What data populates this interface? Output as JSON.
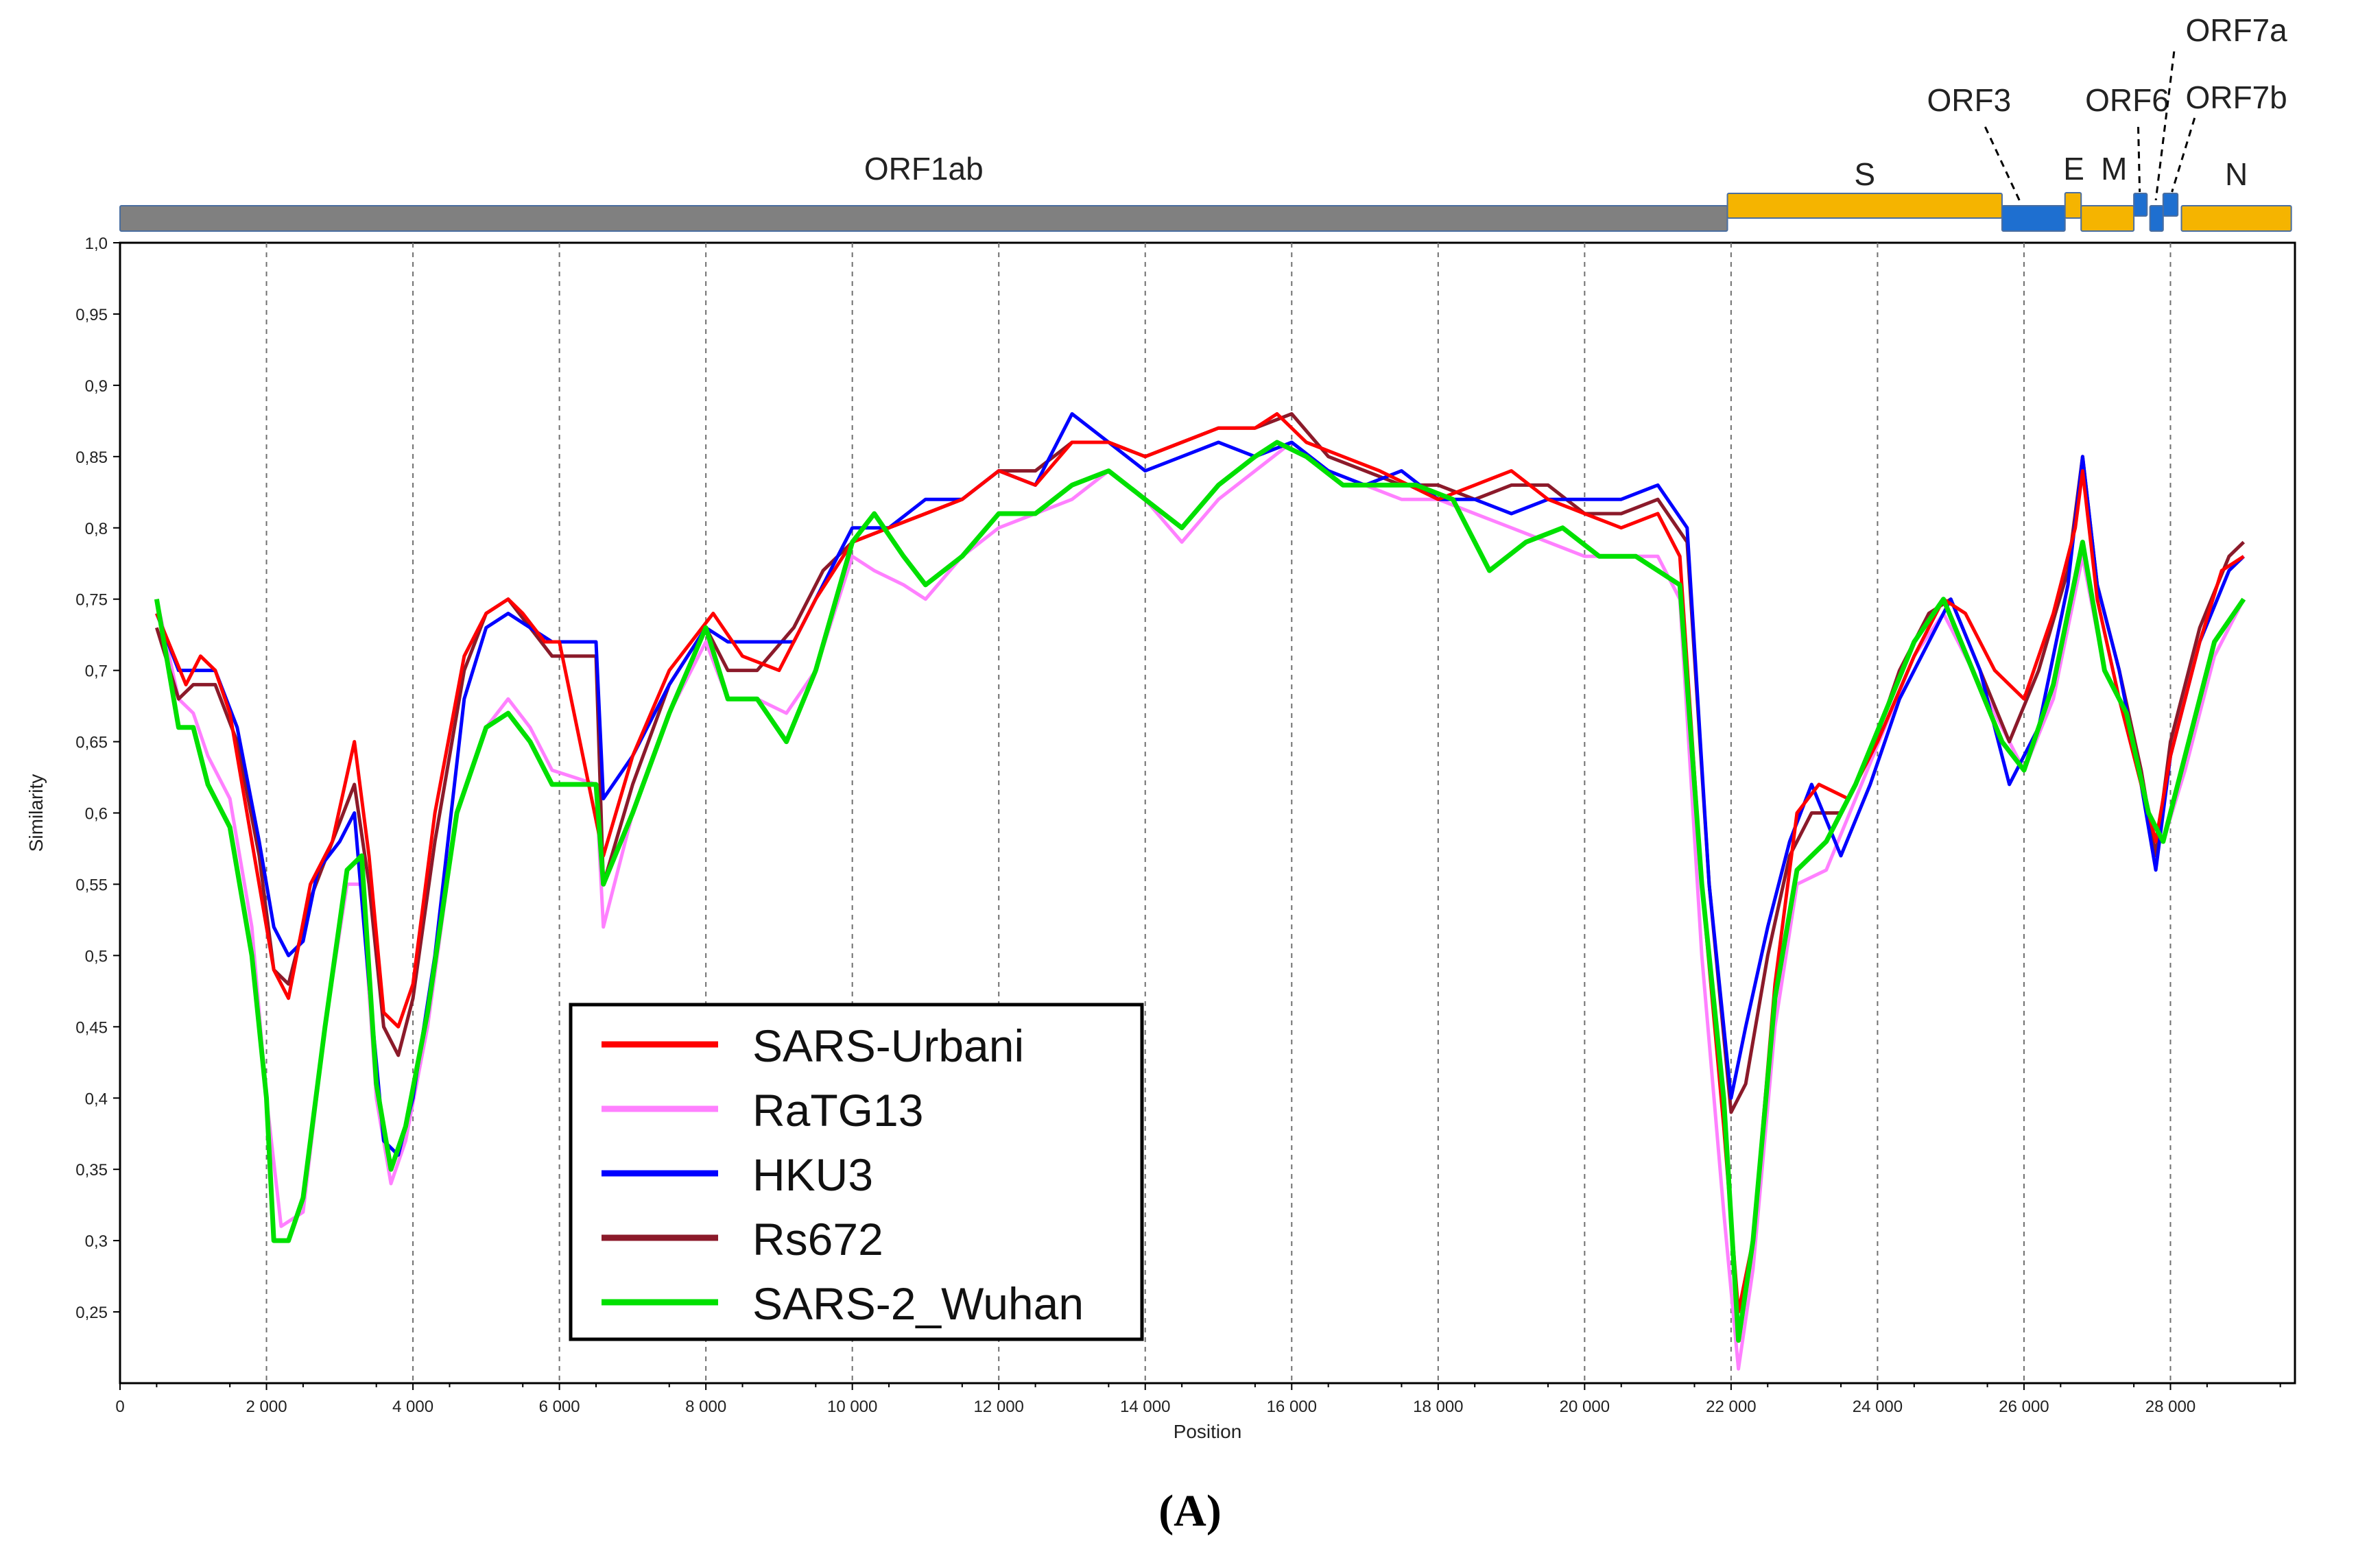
{
  "panel_label": "(A)",
  "chart_data": {
    "type": "line",
    "xlabel": "Position",
    "ylabel": "Similarity",
    "xlim": [
      0,
      29700
    ],
    "ylim": [
      0.2,
      1.0
    ],
    "x_ticks": [
      0,
      2000,
      4000,
      6000,
      8000,
      10000,
      12000,
      14000,
      16000,
      18000,
      20000,
      22000,
      24000,
      26000,
      28000
    ],
    "x_tick_labels": [
      "0",
      "2 000",
      "4 000",
      "6 000",
      "8 000",
      "10 000",
      "12 000",
      "14 000",
      "16 000",
      "18 000",
      "20 000",
      "22 000",
      "24 000",
      "26 000",
      "28 000"
    ],
    "y_ticks": [
      0.25,
      0.3,
      0.35,
      0.4,
      0.45,
      0.5,
      0.55,
      0.6,
      0.65,
      0.7,
      0.75,
      0.8,
      0.85,
      0.9,
      0.95,
      1.0
    ],
    "y_tick_labels": [
      "0,25",
      "0,3",
      "0,35",
      "0,4",
      "0,45",
      "0,5",
      "0,55",
      "0,6",
      "0,65",
      "0,7",
      "0,75",
      "0,8",
      "0,85",
      "0,9",
      "0,95",
      "1,0"
    ],
    "grid": "vertical dashed at x ticks",
    "legend_position": "lower-left",
    "genes": [
      {
        "name": "ORF1ab",
        "start": 0,
        "end": 21950,
        "color": "#808080",
        "label": "ORF1ab"
      },
      {
        "name": "S",
        "start": 21950,
        "end": 25700,
        "color": "#f5b400",
        "label": "S"
      },
      {
        "name": "ORF3",
        "start": 25700,
        "end": 26560,
        "color": "#1e6fd0",
        "label": "ORF3"
      },
      {
        "name": "E",
        "start": 26560,
        "end": 26780,
        "color": "#f5b400",
        "label": "E"
      },
      {
        "name": "M",
        "start": 26780,
        "end": 27500,
        "color": "#f5b400",
        "label": "M"
      },
      {
        "name": "ORF6",
        "start": 27500,
        "end": 27680,
        "color": "#1e6fd0",
        "label": "ORF6"
      },
      {
        "name": "ORF7a",
        "start": 27720,
        "end": 27900,
        "color": "#1e6fd0",
        "label": "ORF7a"
      },
      {
        "name": "ORF7b",
        "start": 27900,
        "end": 28100,
        "color": "#1e6fd0",
        "label": "ORF7b"
      },
      {
        "name": "N",
        "start": 28150,
        "end": 29650,
        "color": "#f5b400",
        "label": "N"
      }
    ],
    "series": [
      {
        "name": "SARS-Urbani",
        "color": "#ff0000",
        "x": [
          500,
          900,
          1100,
          1300,
          1500,
          1800,
          2100,
          2300,
          2600,
          2900,
          3200,
          3400,
          3600,
          3800,
          4000,
          4300,
          4700,
          5000,
          5300,
          5500,
          5800,
          6000,
          6600,
          7000,
          7500,
          8100,
          8500,
          9000,
          9500,
          10000,
          10500,
          11000,
          11500,
          12000,
          12500,
          13000,
          13500,
          14000,
          14500,
          15000,
          15500,
          15800,
          16200,
          16700,
          17200,
          17600,
          18000,
          18500,
          19000,
          19500,
          20000,
          20500,
          21000,
          21300,
          21600,
          21900,
          22100,
          22300,
          22600,
          22900,
          23200,
          23600,
          24000,
          24500,
          24900,
          25200,
          25600,
          26000,
          26400,
          26700,
          26800,
          27000,
          27300,
          27600,
          27800,
          28000,
          28400,
          28700,
          29000
        ],
        "y": [
          0.74,
          0.69,
          0.71,
          0.7,
          0.67,
          0.58,
          0.49,
          0.47,
          0.55,
          0.58,
          0.65,
          0.57,
          0.46,
          0.45,
          0.48,
          0.6,
          0.71,
          0.74,
          0.75,
          0.74,
          0.72,
          0.72,
          0.57,
          0.64,
          0.7,
          0.74,
          0.71,
          0.7,
          0.75,
          0.79,
          0.8,
          0.81,
          0.82,
          0.84,
          0.83,
          0.86,
          0.86,
          0.85,
          0.86,
          0.87,
          0.87,
          0.88,
          0.86,
          0.85,
          0.84,
          0.83,
          0.82,
          0.83,
          0.84,
          0.82,
          0.81,
          0.8,
          0.81,
          0.78,
          0.55,
          0.38,
          0.25,
          0.3,
          0.48,
          0.6,
          0.62,
          0.61,
          0.65,
          0.71,
          0.75,
          0.74,
          0.7,
          0.68,
          0.74,
          0.8,
          0.84,
          0.75,
          0.68,
          0.62,
          0.58,
          0.64,
          0.72,
          0.77,
          0.78
        ]
      },
      {
        "name": "RaTG13",
        "color": "#ff80ff",
        "x": [
          500,
          800,
          1000,
          1200,
          1500,
          1800,
          2000,
          2200,
          2500,
          2800,
          3100,
          3300,
          3500,
          3700,
          3900,
          4200,
          4600,
          5000,
          5300,
          5600,
          5900,
          6500,
          6600,
          7000,
          7500,
          8000,
          8300,
          8700,
          9100,
          9500,
          10000,
          10300,
          10700,
          11000,
          11500,
          12000,
          12500,
          13000,
          13500,
          14000,
          14500,
          15000,
          15500,
          16000,
          16500,
          17000,
          17500,
          18000,
          18500,
          19000,
          19500,
          20000,
          20500,
          21000,
          21300,
          21600,
          21900,
          22100,
          22300,
          22600,
          22900,
          23300,
          23700,
          24100,
          24500,
          24900,
          25300,
          25700,
          26000,
          26400,
          26800,
          27100,
          27400,
          27700,
          27900,
          28200,
          28600,
          29000
        ],
        "y": [
          0.75,
          0.68,
          0.67,
          0.64,
          0.61,
          0.52,
          0.4,
          0.31,
          0.32,
          0.45,
          0.55,
          0.55,
          0.4,
          0.34,
          0.37,
          0.45,
          0.6,
          0.66,
          0.68,
          0.66,
          0.63,
          0.62,
          0.52,
          0.6,
          0.67,
          0.72,
          0.68,
          0.68,
          0.67,
          0.7,
          0.78,
          0.77,
          0.76,
          0.75,
          0.78,
          0.8,
          0.81,
          0.82,
          0.84,
          0.82,
          0.79,
          0.82,
          0.84,
          0.86,
          0.84,
          0.83,
          0.82,
          0.82,
          0.81,
          0.8,
          0.79,
          0.78,
          0.78,
          0.78,
          0.75,
          0.5,
          0.32,
          0.21,
          0.28,
          0.45,
          0.55,
          0.56,
          0.61,
          0.66,
          0.71,
          0.74,
          0.7,
          0.66,
          0.63,
          0.68,
          0.78,
          0.7,
          0.67,
          0.6,
          0.58,
          0.63,
          0.71,
          0.75
        ]
      },
      {
        "name": "HKU3",
        "color": "#0000ff",
        "x": [
          500,
          800,
          1000,
          1300,
          1600,
          1900,
          2100,
          2300,
          2500,
          2700,
          3000,
          3200,
          3400,
          3600,
          3800,
          4000,
          4300,
          4700,
          5000,
          5300,
          5600,
          5900,
          6500,
          6600,
          7000,
          7500,
          8000,
          8300,
          8700,
          9200,
          9600,
          10000,
          10500,
          11000,
          11500,
          12000,
          12500,
          13000,
          13500,
          14000,
          14500,
          15000,
          15500,
          16000,
          16500,
          17000,
          17500,
          18000,
          18500,
          19000,
          19500,
          20000,
          20500,
          21000,
          21400,
          21700,
          22000,
          22200,
          22500,
          22800,
          23100,
          23500,
          23900,
          24300,
          24700,
          25000,
          25400,
          25800,
          26200,
          26600,
          26800,
          27000,
          27300,
          27600,
          27800,
          28000,
          28400,
          28800,
          29000
        ],
        "y": [
          0.74,
          0.7,
          0.7,
          0.7,
          0.66,
          0.58,
          0.52,
          0.5,
          0.51,
          0.56,
          0.58,
          0.6,
          0.48,
          0.37,
          0.36,
          0.4,
          0.5,
          0.68,
          0.73,
          0.74,
          0.73,
          0.72,
          0.72,
          0.61,
          0.64,
          0.69,
          0.73,
          0.72,
          0.72,
          0.72,
          0.76,
          0.8,
          0.8,
          0.82,
          0.82,
          0.84,
          0.83,
          0.88,
          0.86,
          0.84,
          0.85,
          0.86,
          0.85,
          0.86,
          0.84,
          0.83,
          0.84,
          0.82,
          0.82,
          0.81,
          0.82,
          0.82,
          0.82,
          0.83,
          0.8,
          0.55,
          0.4,
          0.45,
          0.52,
          0.58,
          0.62,
          0.57,
          0.62,
          0.68,
          0.72,
          0.75,
          0.7,
          0.62,
          0.66,
          0.76,
          0.85,
          0.76,
          0.7,
          0.62,
          0.56,
          0.64,
          0.72,
          0.77,
          0.78
        ]
      },
      {
        "name": "Rs672",
        "color": "#8b1a2a",
        "x": [
          500,
          800,
          1000,
          1300,
          1600,
          1900,
          2100,
          2300,
          2600,
          2900,
          3200,
          3400,
          3600,
          3800,
          4000,
          4300,
          4700,
          5000,
          5300,
          5600,
          5900,
          6500,
          6600,
          7000,
          7500,
          8000,
          8300,
          8700,
          9200,
          9600,
          10000,
          10500,
          11000,
          11500,
          12000,
          12500,
          13000,
          13500,
          14000,
          14500,
          15000,
          15500,
          16000,
          16500,
          17000,
          17500,
          18000,
          18500,
          19000,
          19500,
          20000,
          20500,
          21000,
          21400,
          21700,
          22000,
          22200,
          22500,
          22800,
          23100,
          23500,
          23900,
          24300,
          24700,
          25000,
          25400,
          25800,
          26200,
          26600,
          26800,
          27000,
          27300,
          27600,
          27800,
          28000,
          28400,
          28800,
          29000
        ],
        "y": [
          0.73,
          0.68,
          0.69,
          0.69,
          0.65,
          0.57,
          0.49,
          0.48,
          0.54,
          0.58,
          0.62,
          0.55,
          0.45,
          0.43,
          0.47,
          0.58,
          0.7,
          0.74,
          0.75,
          0.73,
          0.71,
          0.71,
          0.55,
          0.62,
          0.69,
          0.73,
          0.7,
          0.7,
          0.73,
          0.77,
          0.79,
          0.8,
          0.81,
          0.82,
          0.84,
          0.84,
          0.86,
          0.86,
          0.85,
          0.86,
          0.87,
          0.87,
          0.88,
          0.85,
          0.84,
          0.83,
          0.83,
          0.82,
          0.83,
          0.83,
          0.81,
          0.81,
          0.82,
          0.79,
          0.55,
          0.39,
          0.41,
          0.5,
          0.57,
          0.6,
          0.6,
          0.64,
          0.7,
          0.74,
          0.75,
          0.7,
          0.65,
          0.7,
          0.77,
          0.85,
          0.76,
          0.7,
          0.63,
          0.57,
          0.65,
          0.73,
          0.78,
          0.79
        ]
      },
      {
        "name": "SARS-2_Wuhan",
        "color": "#00e000",
        "x": [
          500,
          800,
          1000,
          1200,
          1500,
          1800,
          2000,
          2100,
          2300,
          2500,
          2800,
          3100,
          3300,
          3500,
          3700,
          3900,
          4200,
          4600,
          5000,
          5300,
          5600,
          5900,
          6500,
          6600,
          7000,
          7500,
          8000,
          8300,
          8700,
          9100,
          9500,
          10000,
          10300,
          10700,
          11000,
          11500,
          12000,
          12500,
          13000,
          13500,
          14000,
          14500,
          15000,
          15500,
          15800,
          16200,
          16700,
          17200,
          17700,
          18200,
          18700,
          19200,
          19700,
          20200,
          20700,
          21000,
          21300,
          21600,
          21900,
          22100,
          22300,
          22600,
          22900,
          23300,
          23700,
          24100,
          24500,
          24900,
          25300,
          25700,
          26000,
          26400,
          26800,
          27100,
          27400,
          27700,
          27900,
          28200,
          28600,
          29000
        ],
        "y": [
          0.75,
          0.66,
          0.66,
          0.62,
          0.59,
          0.5,
          0.4,
          0.3,
          0.3,
          0.33,
          0.45,
          0.56,
          0.57,
          0.41,
          0.35,
          0.38,
          0.46,
          0.6,
          0.66,
          0.67,
          0.65,
          0.62,
          0.62,
          0.55,
          0.6,
          0.67,
          0.73,
          0.68,
          0.68,
          0.65,
          0.7,
          0.79,
          0.81,
          0.78,
          0.76,
          0.78,
          0.81,
          0.81,
          0.83,
          0.84,
          0.82,
          0.8,
          0.83,
          0.85,
          0.86,
          0.85,
          0.83,
          0.83,
          0.83,
          0.82,
          0.77,
          0.79,
          0.8,
          0.78,
          0.78,
          0.77,
          0.76,
          0.55,
          0.4,
          0.23,
          0.3,
          0.47,
          0.56,
          0.58,
          0.62,
          0.67,
          0.72,
          0.75,
          0.7,
          0.65,
          0.63,
          0.69,
          0.79,
          0.7,
          0.67,
          0.6,
          0.58,
          0.64,
          0.72,
          0.75
        ]
      }
    ]
  }
}
